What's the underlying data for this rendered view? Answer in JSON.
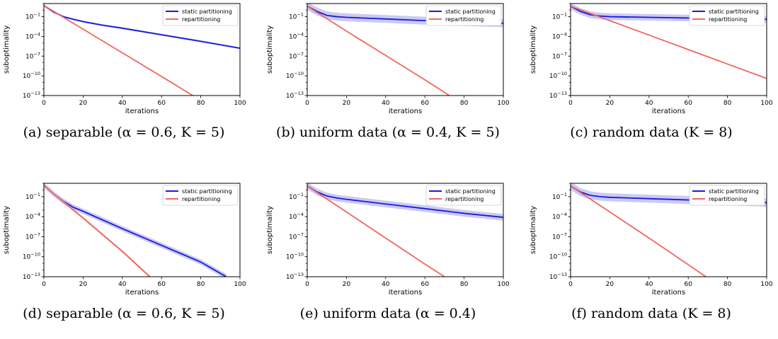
{
  "colors": {
    "static": "#1a1adb",
    "static_band": "#b8b8f0",
    "repart": "#f0675f",
    "repart_band": "#f7b4ae"
  },
  "chart_data": [
    {
      "type": "line",
      "caption": "(a) separable (α = 0.6, K = 5)",
      "xlabel": "iterations",
      "ylabel": "suboptimality",
      "xlim": [
        0,
        100
      ],
      "ylim_log10": [
        -13,
        1
      ],
      "yscale": "log",
      "xticks": [
        0,
        20,
        40,
        60,
        80,
        100
      ],
      "yticks": [
        "10^-1",
        "10^-4",
        "10^-7",
        "10^-10",
        "10^-13"
      ],
      "legend": "top-right",
      "series": [
        {
          "name": "static partitioning",
          "x": [
            0,
            5,
            10,
            15,
            20,
            30,
            40,
            60,
            80,
            100
          ],
          "log10_y": [
            0.7,
            -0.3,
            -1.0,
            -1.4,
            -1.75,
            -2.3,
            -2.75,
            -3.75,
            -4.75,
            -5.8
          ],
          "band": 0.15
        },
        {
          "name": "repartitioning",
          "x": [
            0,
            20,
            40,
            60,
            77
          ],
          "log10_y": [
            0.7,
            -2.9,
            -6.5,
            -10.1,
            -13.2
          ],
          "band": 0.05
        }
      ]
    },
    {
      "type": "line",
      "caption": "(b) uniform data (α = 0.4, K = 5)",
      "xlabel": "iterations",
      "ylabel": "suboptimality",
      "xlim": [
        0,
        100
      ],
      "ylim_log10": [
        -13,
        1
      ],
      "yscale": "log",
      "xticks": [
        0,
        20,
        40,
        60,
        80,
        100
      ],
      "yticks": [
        "10^-1",
        "10^-4",
        "10^-7",
        "10^-10",
        "10^-13"
      ],
      "legend": "top-right",
      "series": [
        {
          "name": "static partitioning",
          "x": [
            0,
            5,
            10,
            15,
            20,
            40,
            60,
            80,
            100
          ],
          "log10_y": [
            0.6,
            -0.2,
            -0.8,
            -1.0,
            -1.1,
            -1.35,
            -1.6,
            -1.8,
            -2.0
          ],
          "band": 0.6
        },
        {
          "name": "repartitioning",
          "x": [
            0,
            20,
            40,
            60,
            73
          ],
          "log10_y": [
            0.6,
            -3.2,
            -6.9,
            -10.6,
            -13.1
          ],
          "band": 0.05
        }
      ]
    },
    {
      "type": "line",
      "caption": "(c) random data (K = 8)",
      "xlabel": "iterations",
      "ylabel": "suboptimality",
      "xlim": [
        0,
        100
      ],
      "ylim_log10": [
        -13,
        1
      ],
      "yscale": "log",
      "xticks": [
        0,
        20,
        40,
        60,
        80,
        100
      ],
      "yticks": [
        "10^-1",
        "10^-4",
        "10^-7",
        "10^-10",
        "10^-13"
      ],
      "legend": "top-right",
      "series": [
        {
          "name": "static partitioning",
          "x": [
            0,
            5,
            10,
            15,
            20,
            40,
            60,
            80,
            100
          ],
          "log10_y": [
            0.6,
            -0.2,
            -0.7,
            -0.9,
            -1.0,
            -1.1,
            -1.2,
            -1.3,
            -1.4
          ],
          "band": 0.5
        },
        {
          "name": "repartitioning",
          "x": [
            0,
            20,
            40,
            60,
            80,
            100
          ],
          "log10_y": [
            0.6,
            -1.6,
            -3.8,
            -6.0,
            -8.2,
            -10.4
          ],
          "band": 0.03
        }
      ]
    },
    {
      "type": "line",
      "caption": "(d) separable (α = 0.6, K = 5)",
      "xlabel": "iterations",
      "ylabel": "suboptimality",
      "xlim": [
        0,
        100
      ],
      "ylim_log10": [
        -13,
        1
      ],
      "yscale": "log",
      "xticks": [
        0,
        20,
        40,
        60,
        80,
        100
      ],
      "yticks": [
        "10^-1",
        "10^-4",
        "10^-7",
        "10^-10",
        "10^-13"
      ],
      "legend": "top-right",
      "series": [
        {
          "name": "static partitioning",
          "x": [
            0,
            5,
            10,
            15,
            20,
            40,
            60,
            80,
            93
          ],
          "log10_y": [
            0.7,
            -0.6,
            -1.7,
            -2.6,
            -3.2,
            -5.8,
            -8.3,
            -10.8,
            -13.0
          ],
          "band": 0.4
        },
        {
          "name": "repartitioning",
          "x": [
            0,
            5,
            10,
            20,
            30,
            40,
            54
          ],
          "log10_y": [
            0.7,
            -0.6,
            -1.8,
            -4.2,
            -6.7,
            -9.2,
            -13.0
          ],
          "band": 0.2
        }
      ]
    },
    {
      "type": "line",
      "caption": "(e) uniform data (α = 0.4)",
      "xlabel": "iterations",
      "ylabel": "suboptimality",
      "xlim": [
        0,
        100
      ],
      "ylim_log10": [
        -13,
        1
      ],
      "yscale": "log",
      "xticks": [
        0,
        20,
        40,
        60,
        80,
        100
      ],
      "yticks": [
        "10^-1",
        "10^-4",
        "10^-7",
        "10^-10",
        "10^-13"
      ],
      "legend": "top-right",
      "series": [
        {
          "name": "static partitioning",
          "x": [
            0,
            5,
            10,
            15,
            20,
            40,
            60,
            80,
            100
          ],
          "log10_y": [
            0.6,
            -0.3,
            -0.9,
            -1.2,
            -1.4,
            -2.1,
            -2.8,
            -3.5,
            -4.1
          ],
          "band": 0.5
        },
        {
          "name": "repartitioning",
          "x": [
            0,
            20,
            40,
            60,
            70
          ],
          "log10_y": [
            0.6,
            -3.3,
            -7.2,
            -11.1,
            -13.0
          ],
          "band": 0.05
        }
      ]
    },
    {
      "type": "line",
      "caption": "(f) random data (K = 8)",
      "xlabel": "iterations",
      "ylabel": "suboptimality",
      "xlim": [
        0,
        100
      ],
      "ylim_log10": [
        -13,
        1
      ],
      "yscale": "log",
      "xticks": [
        0,
        20,
        40,
        60,
        80,
        100
      ],
      "yticks": [
        "10^-1",
        "10^-4",
        "10^-7",
        "10^-10",
        "10^-13"
      ],
      "legend": "top-right",
      "series": [
        {
          "name": "static partitioning",
          "x": [
            0,
            5,
            10,
            15,
            20,
            40,
            60,
            80,
            100
          ],
          "log10_y": [
            0.6,
            -0.3,
            -0.8,
            -1.0,
            -1.1,
            -1.3,
            -1.5,
            -1.7,
            -1.9
          ],
          "band": 0.6
        },
        {
          "name": "repartitioning",
          "x": [
            0,
            20,
            40,
            60,
            69
          ],
          "log10_y": [
            0.6,
            -3.3,
            -7.2,
            -11.2,
            -13.0
          ],
          "band": 0.05
        }
      ]
    }
  ]
}
